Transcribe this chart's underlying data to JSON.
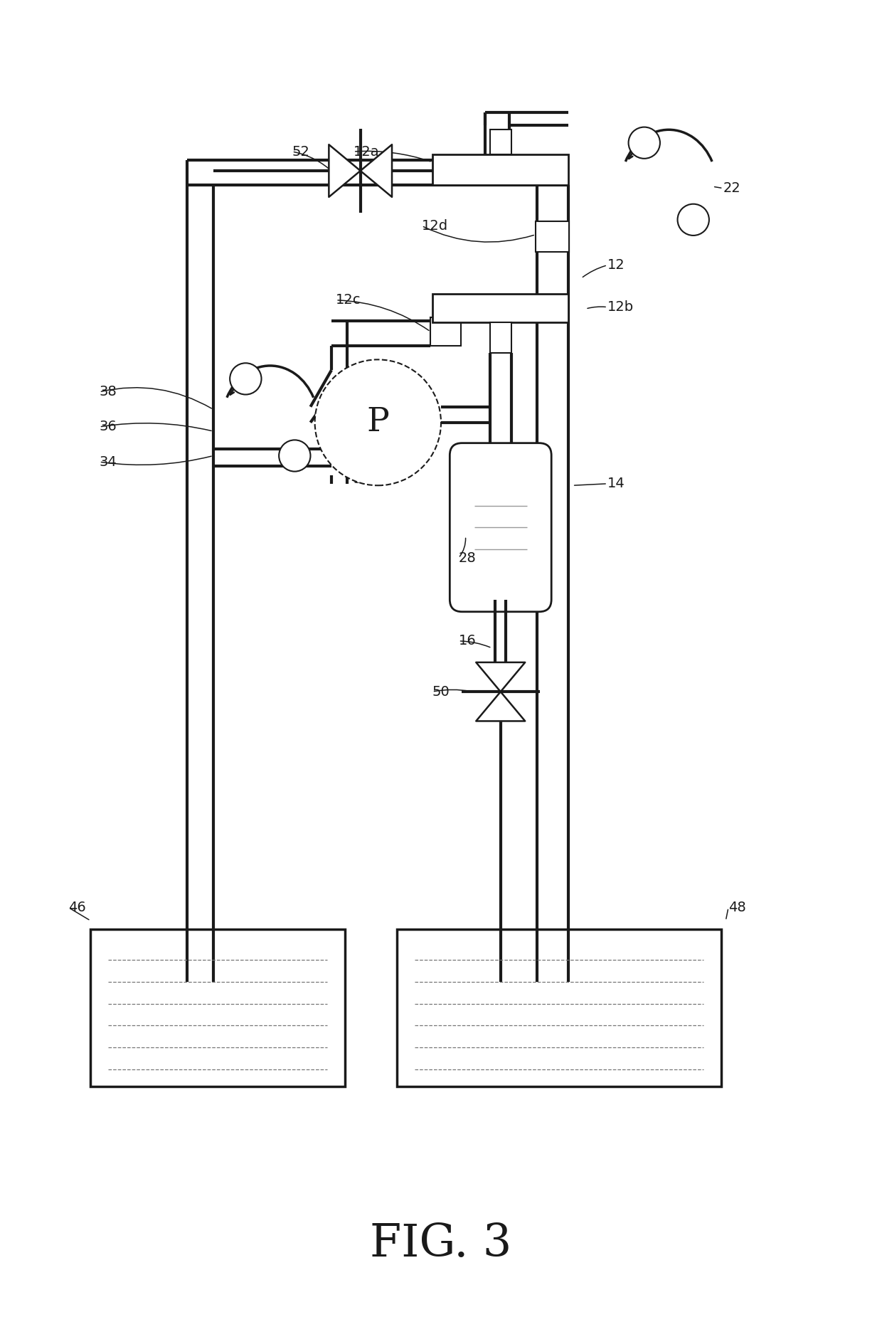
{
  "bg_color": "#ffffff",
  "lc": "#1a1a1a",
  "lw": 3.0,
  "tlw": 1.5,
  "fig_title": "FIG. 3",
  "lfs": 14,
  "tfs": 46,
  "xlim": [
    0,
    10
  ],
  "ylim": [
    0,
    15
  ]
}
